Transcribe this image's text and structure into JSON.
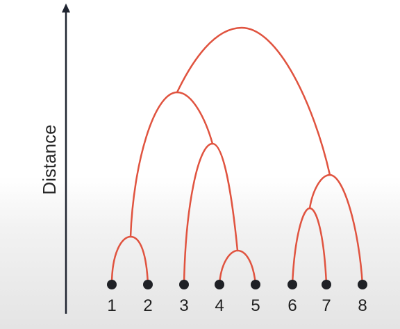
{
  "diagram": {
    "type": "dendrogram",
    "y_axis_label": "Distance",
    "leaves": [
      "1",
      "2",
      "3",
      "4",
      "5",
      "6",
      "7",
      "8"
    ],
    "colors": {
      "branch": "#e0533f",
      "leaf": "#1f2126",
      "axis": "#1f2430",
      "text": "#1f1f1f"
    }
  }
}
